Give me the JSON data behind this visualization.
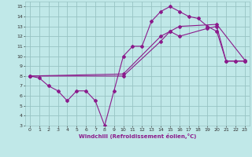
{
  "xlabel": "Windchill (Refroidissement éolien,°C)",
  "bg_color": "#c0e8e8",
  "grid_color": "#98c4c4",
  "line_color": "#8b1a8b",
  "xlim": [
    -0.5,
    23.5
  ],
  "ylim": [
    3,
    15.5
  ],
  "xticks": [
    0,
    1,
    2,
    3,
    4,
    5,
    6,
    7,
    8,
    9,
    10,
    11,
    12,
    13,
    14,
    15,
    16,
    17,
    18,
    19,
    20,
    21,
    22,
    23
  ],
  "yticks": [
    3,
    4,
    5,
    6,
    7,
    8,
    9,
    10,
    11,
    12,
    13,
    14,
    15
  ],
  "line1_x": [
    0,
    1,
    2,
    3,
    4,
    5,
    6,
    7,
    8,
    9,
    10,
    11,
    12,
    13,
    14,
    15,
    16,
    17,
    18,
    19,
    20,
    21,
    22,
    23
  ],
  "line1_y": [
    8.0,
    7.8,
    7.0,
    6.5,
    5.5,
    6.5,
    6.5,
    5.5,
    3.0,
    6.5,
    10.0,
    11.0,
    11.0,
    13.5,
    14.5,
    15.0,
    14.5,
    14.0,
    13.8,
    13.0,
    12.5,
    9.5,
    9.5,
    9.5
  ],
  "line2_x": [
    0,
    10,
    14,
    15,
    16,
    19,
    20,
    21,
    22,
    23
  ],
  "line2_y": [
    8.0,
    8.0,
    11.5,
    12.5,
    12.0,
    12.8,
    13.0,
    9.5,
    9.5,
    9.5
  ],
  "line3_x": [
    0,
    10,
    14,
    15,
    16,
    20,
    23
  ],
  "line3_y": [
    8.0,
    8.2,
    12.0,
    12.5,
    13.0,
    13.2,
    9.6
  ]
}
